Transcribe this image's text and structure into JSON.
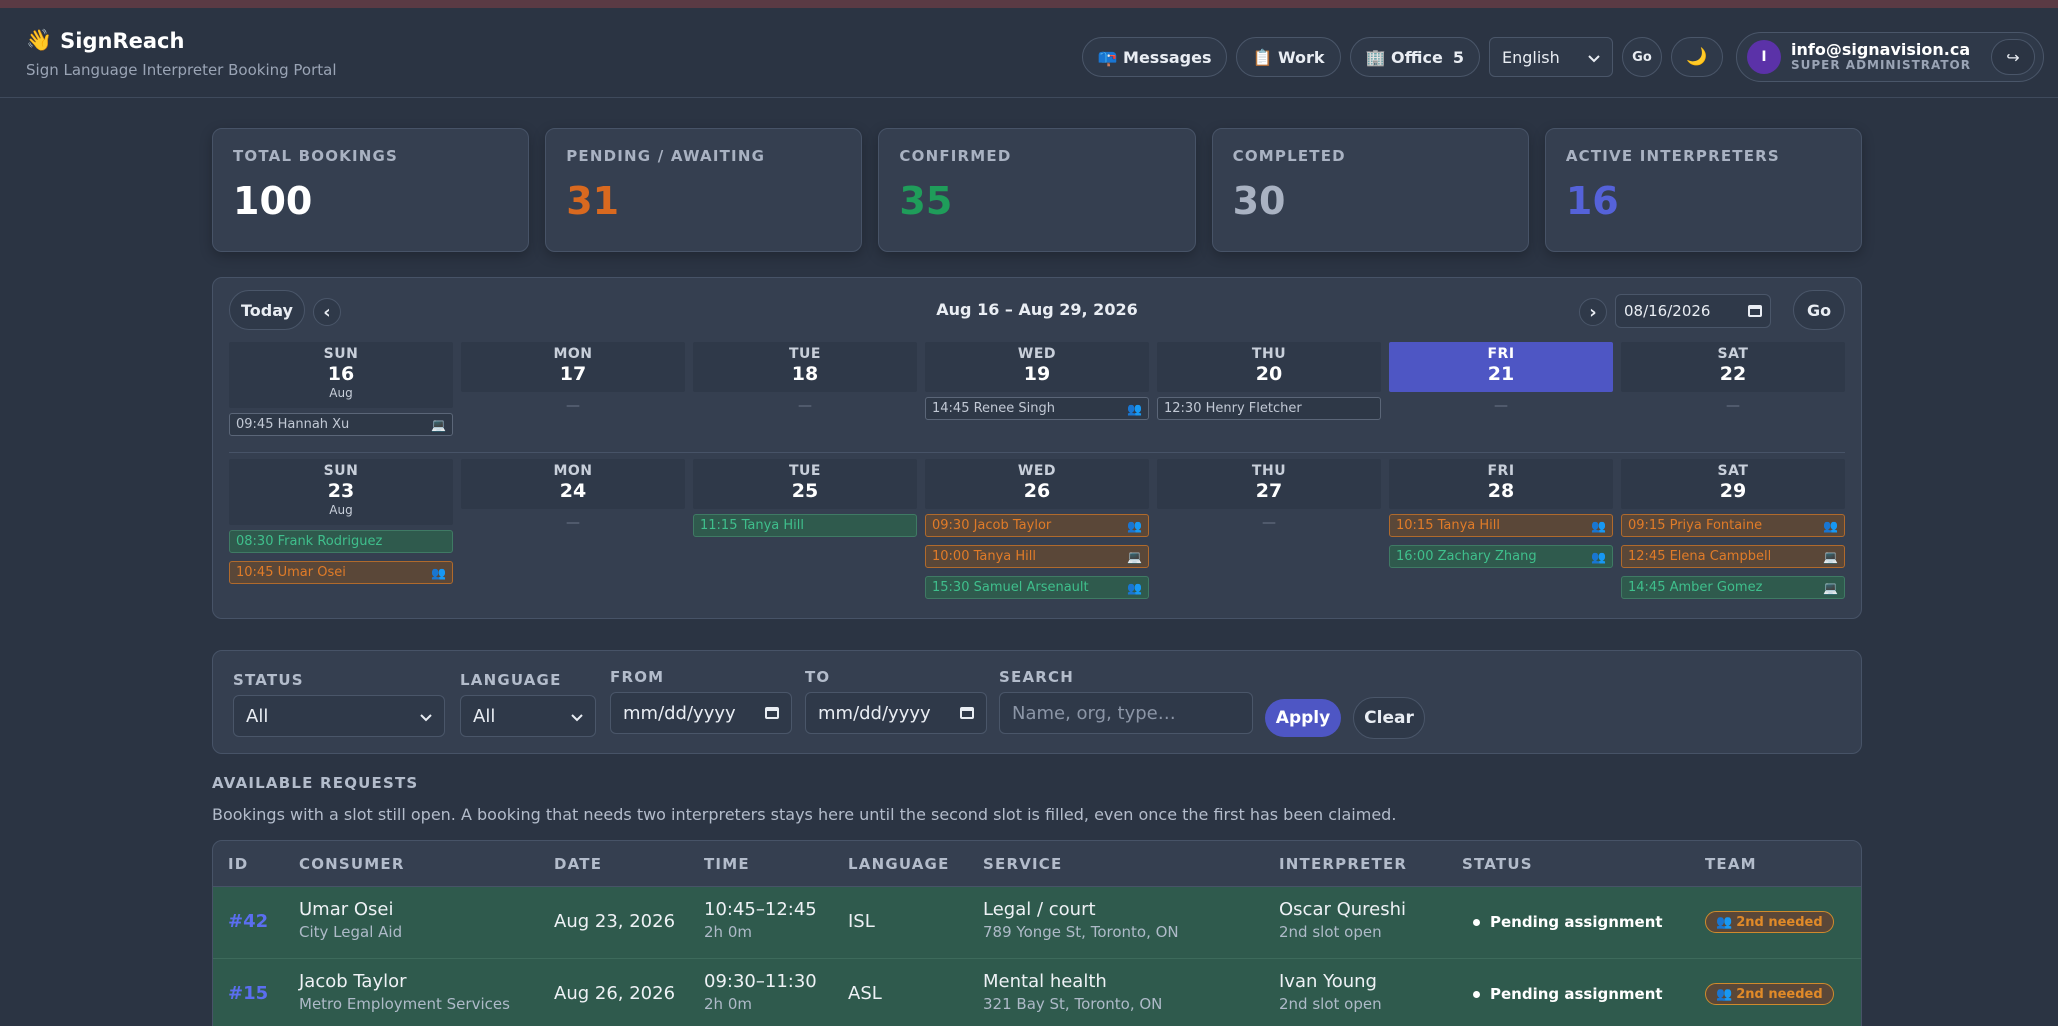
{
  "app": {
    "icon": "👋",
    "title": "SignReach",
    "subtitle": "Sign Language Interpreter Booking Portal"
  },
  "nav": {
    "messages": "📪 Messages",
    "work": "📋 Work",
    "office": "🏢 Office",
    "office_count": "5",
    "language": "English",
    "go": "Go",
    "theme_icon": "🌙",
    "logout_icon": "↪"
  },
  "user": {
    "initial": "I",
    "email": "info@signavision.ca",
    "role": "SUPER ADMINISTRATOR"
  },
  "stats": [
    {
      "label": "TOTAL BOOKINGS",
      "value": "100",
      "color": "#ffffff"
    },
    {
      "label": "PENDING / AWAITING",
      "value": "31",
      "color": "#d9691f"
    },
    {
      "label": "CONFIRMED",
      "value": "35",
      "color": "#1f9d5a"
    },
    {
      "label": "COMPLETED",
      "value": "30",
      "color": "#a9b2c2"
    },
    {
      "label": "ACTIVE INTERPRETERS",
      "value": "16",
      "color": "#5562d9"
    }
  ],
  "calendar": {
    "today": "Today",
    "prev": "‹",
    "next": "›",
    "range": "Aug 16 – Aug 29, 2026",
    "date_value": "08/16/2026",
    "go": "Go",
    "empty": "—",
    "weeks": [
      {
        "days": [
          {
            "dow": "SUN",
            "num": "16",
            "mon": "Aug",
            "today": false,
            "events": [
              {
                "label": "09:45 Hannah Xu",
                "kind": "grey",
                "icon": "💻"
              }
            ]
          },
          {
            "dow": "MON",
            "num": "17",
            "mon": "",
            "today": false,
            "events": []
          },
          {
            "dow": "TUE",
            "num": "18",
            "mon": "",
            "today": false,
            "events": []
          },
          {
            "dow": "WED",
            "num": "19",
            "mon": "",
            "today": false,
            "events": [
              {
                "label": "14:45 Renee Singh",
                "kind": "grey",
                "icon": "👥"
              }
            ]
          },
          {
            "dow": "THU",
            "num": "20",
            "mon": "",
            "today": false,
            "events": [
              {
                "label": "12:30 Henry Fletcher",
                "kind": "grey",
                "icon": ""
              }
            ]
          },
          {
            "dow": "FRI",
            "num": "21",
            "mon": "",
            "today": true,
            "events": []
          },
          {
            "dow": "SAT",
            "num": "22",
            "mon": "",
            "today": false,
            "events": []
          }
        ]
      },
      {
        "days": [
          {
            "dow": "SUN",
            "num": "23",
            "mon": "Aug",
            "today": false,
            "events": [
              {
                "label": "08:30 Frank Rodriguez",
                "kind": "green",
                "icon": ""
              },
              {
                "label": "10:45 Umar Osei",
                "kind": "orange",
                "icon": "👥"
              }
            ]
          },
          {
            "dow": "MON",
            "num": "24",
            "mon": "",
            "today": false,
            "events": []
          },
          {
            "dow": "TUE",
            "num": "25",
            "mon": "",
            "today": false,
            "events": [
              {
                "label": "11:15 Tanya Hill",
                "kind": "green",
                "icon": ""
              }
            ]
          },
          {
            "dow": "WED",
            "num": "26",
            "mon": "",
            "today": false,
            "events": [
              {
                "label": "09:30 Jacob Taylor",
                "kind": "orange",
                "icon": "👥"
              },
              {
                "label": "10:00 Tanya Hill",
                "kind": "orange",
                "icon": "💻"
              },
              {
                "label": "15:30 Samuel Arsenault",
                "kind": "green",
                "icon": "👥"
              }
            ]
          },
          {
            "dow": "THU",
            "num": "27",
            "mon": "",
            "today": false,
            "events": []
          },
          {
            "dow": "FRI",
            "num": "28",
            "mon": "",
            "today": false,
            "events": [
              {
                "label": "10:15 Tanya Hill",
                "kind": "orange",
                "icon": "👥"
              },
              {
                "label": "16:00 Zachary Zhang",
                "kind": "green",
                "icon": "👥"
              }
            ]
          },
          {
            "dow": "SAT",
            "num": "29",
            "mon": "",
            "today": false,
            "events": [
              {
                "label": "09:15 Priya Fontaine",
                "kind": "orange",
                "icon": "👥"
              },
              {
                "label": "12:45 Elena Campbell",
                "kind": "orange",
                "icon": "💻"
              },
              {
                "label": "14:45 Amber Gomez",
                "kind": "green",
                "icon": "💻"
              }
            ]
          }
        ]
      }
    ]
  },
  "filters": {
    "status_label": "STATUS",
    "status_value": "All",
    "language_label": "LANGUAGE",
    "language_value": "All",
    "from_label": "FROM",
    "from_placeholder": "mm/dd/yyyy",
    "to_label": "TO",
    "to_placeholder": "mm/dd/yyyy",
    "search_label": "SEARCH",
    "search_placeholder": "Name, org, type…",
    "apply": "Apply",
    "clear": "Clear"
  },
  "requests": {
    "title": "AVAILABLE REQUESTS",
    "description": "Bookings with a slot still open. A booking that needs two interpreters stays here until the second slot is filled, even once the first has been claimed.",
    "columns": [
      "ID",
      "CONSUMER",
      "DATE",
      "TIME",
      "LANGUAGE",
      "SERVICE",
      "INTERPRETER",
      "STATUS",
      "TEAM"
    ],
    "rows": [
      {
        "id": "#42",
        "consumer": "Umar Osei",
        "org": "City Legal Aid",
        "date": "Aug 23, 2026",
        "time": "10:45–12:45",
        "duration": "2h 0m",
        "language": "ISL",
        "service": "Legal / court",
        "address": "789 Yonge St, Toronto, ON",
        "interpreter": "Oscar Qureshi",
        "slot": "2nd slot open",
        "status": "Pending assignment",
        "team": "2nd needed",
        "team_icon": "👥"
      },
      {
        "id": "#15",
        "consumer": "Jacob Taylor",
        "org": "Metro Employment Services",
        "date": "Aug 26, 2026",
        "time": "09:30–11:30",
        "duration": "2h 0m",
        "language": "ASL",
        "service": "Mental health",
        "address": "321 Bay St, Toronto, ON",
        "interpreter": "Ivan Young",
        "slot": "2nd slot open",
        "status": "Pending assignment",
        "team": "2nd needed",
        "team_icon": "👥"
      }
    ]
  }
}
